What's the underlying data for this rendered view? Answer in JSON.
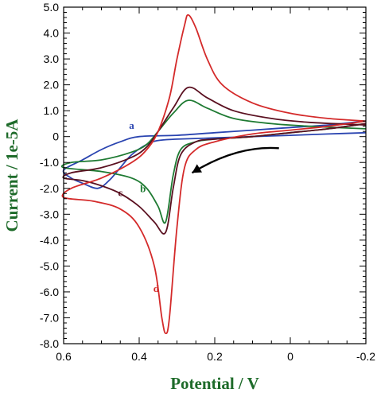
{
  "chart_data": {
    "type": "line",
    "title": "",
    "xlabel": "Potential / V",
    "ylabel": "Current / 1e-5A",
    "xlim": [
      0.6,
      -0.2
    ],
    "ylim": [
      -8.0,
      5.0
    ],
    "x_reversed": true,
    "grid": false,
    "legend": "none",
    "x_ticks": [
      {
        "value": 0.6,
        "label": "0.6"
      },
      {
        "value": 0.4,
        "label": "0.4"
      },
      {
        "value": 0.2,
        "label": "0.2"
      },
      {
        "value": 0.0,
        "label": "0"
      },
      {
        "value": -0.2,
        "label": "-0.2"
      }
    ],
    "y_ticks": [
      {
        "value": 5.0,
        "label": "5.0"
      },
      {
        "value": 4.0,
        "label": "4.0"
      },
      {
        "value": 3.0,
        "label": "3.0"
      },
      {
        "value": 2.0,
        "label": "2.0"
      },
      {
        "value": 1.0,
        "label": "1.0"
      },
      {
        "value": 0.0,
        "label": "0"
      },
      {
        "value": -1.0,
        "label": "-1.0"
      },
      {
        "value": -2.0,
        "label": "-2.0"
      },
      {
        "value": -3.0,
        "label": "-3.0"
      },
      {
        "value": -4.0,
        "label": "-4.0"
      },
      {
        "value": -5.0,
        "label": "-5.0"
      },
      {
        "value": -6.0,
        "label": "-6.0"
      },
      {
        "value": -7.0,
        "label": "-7.0"
      },
      {
        "value": -8.0,
        "label": "-8.0"
      }
    ],
    "series": [
      {
        "name": "a",
        "color": "#2a44b0",
        "label_at": [
          0.42,
          0.3
        ],
        "points": [
          [
            -0.2,
            0.6
          ],
          [
            -0.1,
            0.45
          ],
          [
            0.0,
            0.35
          ],
          [
            0.1,
            0.25
          ],
          [
            0.2,
            0.15
          ],
          [
            0.3,
            0.05
          ],
          [
            0.4,
            0.0
          ],
          [
            0.45,
            -0.2
          ],
          [
            0.5,
            -0.5
          ],
          [
            0.55,
            -0.9
          ],
          [
            0.6,
            -1.3
          ],
          [
            0.58,
            -1.6
          ],
          [
            0.55,
            -1.8
          ],
          [
            0.51,
            -2.0
          ],
          [
            0.48,
            -1.7
          ],
          [
            0.45,
            -1.2
          ],
          [
            0.42,
            -0.7
          ],
          [
            0.38,
            -0.3
          ],
          [
            0.35,
            -0.15
          ],
          [
            0.3,
            -0.1
          ],
          [
            0.2,
            -0.05
          ],
          [
            0.1,
            0.0
          ],
          [
            0.0,
            0.05
          ],
          [
            -0.1,
            0.1
          ],
          [
            -0.2,
            0.15
          ]
        ]
      },
      {
        "name": "b",
        "color": "#1e7a32",
        "label_at": [
          0.39,
          -2.15
        ],
        "points": [
          [
            -0.2,
            0.5
          ],
          [
            -0.1,
            0.3
          ],
          [
            0.0,
            0.15
          ],
          [
            0.1,
            0.0
          ],
          [
            0.2,
            -0.1
          ],
          [
            0.25,
            -0.2
          ],
          [
            0.29,
            -0.5
          ],
          [
            0.31,
            -1.5
          ],
          [
            0.33,
            -3.3
          ],
          [
            0.35,
            -2.7
          ],
          [
            0.38,
            -2.0
          ],
          [
            0.42,
            -1.6
          ],
          [
            0.5,
            -1.35
          ],
          [
            0.6,
            -1.2
          ],
          [
            0.58,
            -1.0
          ],
          [
            0.5,
            -0.9
          ],
          [
            0.42,
            -0.6
          ],
          [
            0.38,
            -0.3
          ],
          [
            0.35,
            0.2
          ],
          [
            0.31,
            0.9
          ],
          [
            0.27,
            1.4
          ],
          [
            0.22,
            1.1
          ],
          [
            0.15,
            0.7
          ],
          [
            0.05,
            0.5
          ],
          [
            -0.05,
            0.4
          ],
          [
            -0.2,
            0.3
          ]
        ]
      },
      {
        "name": "c",
        "color": "#5a1020",
        "label_at": [
          0.45,
          -2.3
        ],
        "points": [
          [
            -0.2,
            0.5
          ],
          [
            -0.1,
            0.3
          ],
          [
            0.0,
            0.15
          ],
          [
            0.1,
            0.0
          ],
          [
            0.2,
            -0.1
          ],
          [
            0.25,
            -0.2
          ],
          [
            0.29,
            -0.7
          ],
          [
            0.31,
            -2.0
          ],
          [
            0.33,
            -3.7
          ],
          [
            0.36,
            -3.3
          ],
          [
            0.4,
            -2.7
          ],
          [
            0.45,
            -2.2
          ],
          [
            0.5,
            -1.9
          ],
          [
            0.55,
            -1.7
          ],
          [
            0.6,
            -1.6
          ],
          [
            0.58,
            -1.4
          ],
          [
            0.5,
            -1.2
          ],
          [
            0.42,
            -0.8
          ],
          [
            0.38,
            -0.4
          ],
          [
            0.35,
            0.2
          ],
          [
            0.31,
            1.1
          ],
          [
            0.27,
            1.9
          ],
          [
            0.22,
            1.5
          ],
          [
            0.15,
            1.0
          ],
          [
            0.05,
            0.7
          ],
          [
            -0.05,
            0.55
          ],
          [
            -0.2,
            0.45
          ]
        ]
      },
      {
        "name": "d",
        "color": "#d42a2a",
        "label_at": [
          0.355,
          -6.0
        ],
        "points": [
          [
            -0.2,
            0.6
          ],
          [
            -0.1,
            0.4
          ],
          [
            0.0,
            0.25
          ],
          [
            0.1,
            0.1
          ],
          [
            0.2,
            -0.2
          ],
          [
            0.25,
            -0.5
          ],
          [
            0.28,
            -1.2
          ],
          [
            0.3,
            -3.5
          ],
          [
            0.32,
            -7.0
          ],
          [
            0.33,
            -7.6
          ],
          [
            0.34,
            -7.0
          ],
          [
            0.36,
            -5.0
          ],
          [
            0.4,
            -3.5
          ],
          [
            0.45,
            -2.8
          ],
          [
            0.52,
            -2.5
          ],
          [
            0.6,
            -2.35
          ],
          [
            0.58,
            -2.0
          ],
          [
            0.5,
            -1.6
          ],
          [
            0.42,
            -1.0
          ],
          [
            0.38,
            -0.5
          ],
          [
            0.35,
            0.2
          ],
          [
            0.32,
            1.5
          ],
          [
            0.3,
            3.0
          ],
          [
            0.28,
            4.3
          ],
          [
            0.27,
            4.7
          ],
          [
            0.25,
            4.2
          ],
          [
            0.22,
            3.0
          ],
          [
            0.18,
            2.0
          ],
          [
            0.1,
            1.3
          ],
          [
            0.0,
            0.9
          ],
          [
            -0.1,
            0.7
          ],
          [
            -0.2,
            0.6
          ]
        ]
      }
    ],
    "annotations": [
      {
        "type": "arrow",
        "from": [
          0.03,
          -0.45
        ],
        "to": [
          0.26,
          -1.4
        ],
        "color": "#000000"
      }
    ]
  }
}
